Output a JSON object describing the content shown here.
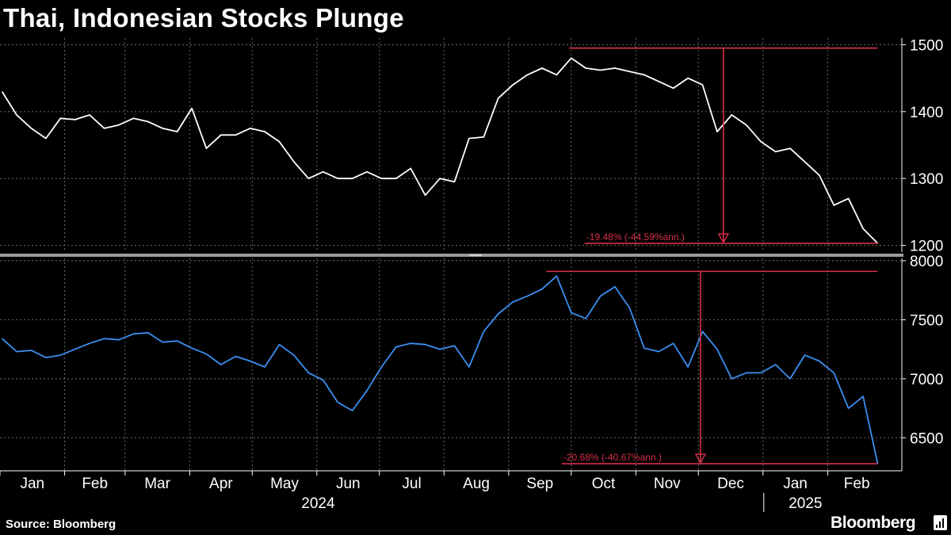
{
  "title": "Thai, Indonesian Stocks Plunge",
  "source": "Source: Bloomberg",
  "brand": "Bloomberg",
  "colors": {
    "background": "#000000",
    "series_top": "#ffffff",
    "series_bottom": "#3b8ff0",
    "annotation": "#d8304a",
    "grid": "#6a6a6a",
    "axis": "#ffffff"
  },
  "chart_data": [
    {
      "type": "line",
      "panel": "top",
      "series": [
        {
          "x": [
            "2024-01-02",
            "2024-01-09",
            "2024-01-16",
            "2024-01-23",
            "2024-01-30",
            "2024-02-06",
            "2024-02-13",
            "2024-02-20",
            "2024-02-27",
            "2024-03-05",
            "2024-03-12",
            "2024-03-19",
            "2024-03-26",
            "2024-04-02",
            "2024-04-09",
            "2024-04-16",
            "2024-04-23",
            "2024-04-30",
            "2024-05-07",
            "2024-05-14",
            "2024-05-21",
            "2024-05-28",
            "2024-06-04",
            "2024-06-11",
            "2024-06-18",
            "2024-06-25",
            "2024-07-02",
            "2024-07-09",
            "2024-07-16",
            "2024-07-23",
            "2024-07-30",
            "2024-08-06",
            "2024-08-13",
            "2024-08-20",
            "2024-08-27",
            "2024-09-03",
            "2024-09-10",
            "2024-09-17",
            "2024-09-24",
            "2024-10-01",
            "2024-10-08",
            "2024-10-15",
            "2024-10-22",
            "2024-10-29",
            "2024-11-05",
            "2024-11-12",
            "2024-11-19",
            "2024-11-26",
            "2024-12-03",
            "2024-12-10",
            "2024-12-17",
            "2024-12-24",
            "2024-12-31",
            "2025-01-07",
            "2025-01-14",
            "2025-01-21",
            "2025-01-28",
            "2025-02-04",
            "2025-02-11",
            "2025-02-18",
            "2025-02-25"
          ],
          "values": [
            1430,
            1395,
            1375,
            1360,
            1390,
            1388,
            1395,
            1375,
            1380,
            1390,
            1385,
            1375,
            1370,
            1405,
            1345,
            1365,
            1365,
            1375,
            1370,
            1355,
            1325,
            1300,
            1310,
            1300,
            1300,
            1310,
            1300,
            1300,
            1315,
            1275,
            1300,
            1295,
            1360,
            1362,
            1420,
            1440,
            1455,
            1465,
            1455,
            1480,
            1465,
            1462,
            1465,
            1460,
            1455,
            1445,
            1435,
            1450,
            1440,
            1370,
            1395,
            1380,
            1355,
            1340,
            1345,
            1325,
            1305,
            1260,
            1270,
            1225,
            1203
          ]
        }
      ],
      "y_ticks": [
        1200,
        1300,
        1400,
        1500
      ],
      "ylim": [
        1190,
        1510
      ],
      "annotation": {
        "label": "-19.48% (-44.59%ann.)",
        "peak_date": "2024-09-30",
        "peak_value": 1495,
        "trough_value": 1203,
        "arrow_date": "2024-12-13"
      }
    },
    {
      "type": "line",
      "panel": "bottom",
      "series": [
        {
          "x": [
            "2024-01-02",
            "2024-01-09",
            "2024-01-16",
            "2024-01-23",
            "2024-01-30",
            "2024-02-06",
            "2024-02-13",
            "2024-02-20",
            "2024-02-27",
            "2024-03-05",
            "2024-03-12",
            "2024-03-19",
            "2024-03-26",
            "2024-04-02",
            "2024-04-09",
            "2024-04-16",
            "2024-04-23",
            "2024-04-30",
            "2024-05-07",
            "2024-05-14",
            "2024-05-21",
            "2024-05-28",
            "2024-06-04",
            "2024-06-11",
            "2024-06-18",
            "2024-06-25",
            "2024-07-02",
            "2024-07-09",
            "2024-07-16",
            "2024-07-23",
            "2024-07-30",
            "2024-08-06",
            "2024-08-13",
            "2024-08-20",
            "2024-08-27",
            "2024-09-03",
            "2024-09-10",
            "2024-09-17",
            "2024-09-24",
            "2024-10-01",
            "2024-10-08",
            "2024-10-15",
            "2024-10-22",
            "2024-10-29",
            "2024-11-05",
            "2024-11-12",
            "2024-11-19",
            "2024-11-26",
            "2024-12-03",
            "2024-12-10",
            "2024-12-17",
            "2024-12-24",
            "2024-12-31",
            "2025-01-07",
            "2025-01-14",
            "2025-01-21",
            "2025-01-28",
            "2025-02-04",
            "2025-02-11",
            "2025-02-18",
            "2025-02-25"
          ],
          "values": [
            7340,
            7230,
            7240,
            7180,
            7200,
            7250,
            7300,
            7340,
            7330,
            7380,
            7390,
            7310,
            7320,
            7260,
            7210,
            7120,
            7190,
            7150,
            7100,
            7290,
            7200,
            7050,
            6990,
            6800,
            6730,
            6900,
            7100,
            7270,
            7300,
            7290,
            7250,
            7280,
            7100,
            7400,
            7550,
            7650,
            7700,
            7760,
            7870,
            7560,
            7510,
            7700,
            7780,
            7600,
            7260,
            7230,
            7300,
            7100,
            7400,
            7250,
            7000,
            7050,
            7050,
            7120,
            7000,
            7200,
            7150,
            7050,
            6750,
            6850,
            6280
          ]
        }
      ],
      "y_ticks": [
        6500,
        7000,
        7500,
        8000
      ],
      "ylim": [
        6220,
        8020
      ],
      "annotation": {
        "label": "-20.68% (-40.67%ann.)",
        "peak_date": "2024-09-19",
        "peak_value": 7910,
        "trough_value": 6280,
        "arrow_date": "2024-12-02"
      }
    }
  ],
  "x_axis": {
    "months": [
      {
        "label": "Jan",
        "date": "2024-01-01"
      },
      {
        "label": "Feb",
        "date": "2024-02-01"
      },
      {
        "label": "Mar",
        "date": "2024-03-01"
      },
      {
        "label": "Apr",
        "date": "2024-04-01"
      },
      {
        "label": "May",
        "date": "2024-05-01"
      },
      {
        "label": "Jun",
        "date": "2024-06-01"
      },
      {
        "label": "Jul",
        "date": "2024-07-01"
      },
      {
        "label": "Aug",
        "date": "2024-08-01"
      },
      {
        "label": "Sep",
        "date": "2024-09-01"
      },
      {
        "label": "Oct",
        "date": "2024-10-01"
      },
      {
        "label": "Nov",
        "date": "2024-11-01"
      },
      {
        "label": "Dec",
        "date": "2024-12-01"
      },
      {
        "label": "Jan",
        "date": "2025-01-01"
      },
      {
        "label": "Feb",
        "date": "2025-02-01"
      }
    ],
    "years": [
      {
        "label": "2024",
        "date": "2024-07-01"
      },
      {
        "label": "2025",
        "date": "2025-02-01"
      }
    ],
    "end_date": "2025-03-01"
  }
}
